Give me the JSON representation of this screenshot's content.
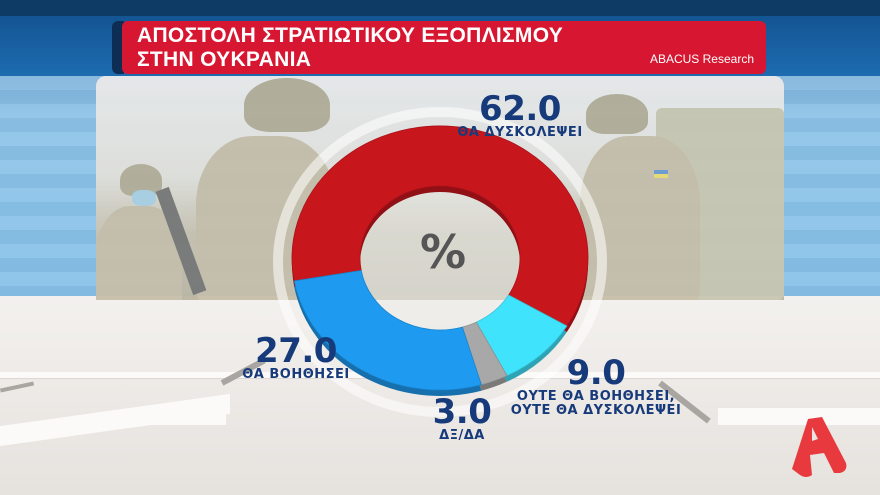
{
  "header": {
    "title_line1": "ΑΠΟΣΤΟΛΗ ΣΤΡΑΤΙΩΤΙΚΟΥ ΕΞΟΠΛΙΣΜΟΥ",
    "title_line2": "ΣΤΗΝ ΟΥΚΡΑΝΙΑ",
    "source": "ABACUS Research"
  },
  "center_symbol": "%",
  "labels": {
    "hinder": {
      "value": "62.0",
      "caption": "ΘΑ ΔΥΣΚΟΛΕΨΕΙ"
    },
    "help": {
      "value": "27.0",
      "caption": "ΘΑ ΒΟΗΘΗΣΕΙ"
    },
    "neither": {
      "value": "9.0",
      "caption_line1": "ΟΥΤΕ ΘΑ ΒΟΗΘΗΣΕΙ,",
      "caption_line2": "ΟΥΤΕ ΘΑ ΔΥΣΚΟΛΕΨΕΙ"
    },
    "dk": {
      "value": "3.0",
      "caption": "ΔΞ/ΔΑ"
    }
  },
  "colors": {
    "title_red": "#d71731",
    "hinder_red": "#c8161d",
    "help_blue": "#1e9bf0",
    "neither_cyan": "#3fe3fb",
    "dk_gray": "#a8a8a8",
    "label_navy": "#173a7a",
    "logo_red": "#e83a3e"
  },
  "chart_data": {
    "type": "pie",
    "donut": true,
    "title": "ΑΠΟΣΤΟΛΗ ΣΤΡΑΤΙΩΤΙΚΟΥ ΕΞΟΠΛΙΣΜΟΥ ΣΤΗΝ ΟΥΚΡΑΝΙΑ",
    "source": "ABACUS Research",
    "unit": "%",
    "categories": [
      "ΘΑ ΔΥΣΚΟΛΕΨΕΙ",
      "ΟΥΤΕ ΘΑ ΒΟΗΘΗΣΕΙ, ΟΥΤΕ ΘΑ ΔΥΣΚΟΛΕΨΕΙ",
      "ΔΞ/ΔΑ",
      "ΘΑ ΒΟΗΘΗΣΕΙ"
    ],
    "values": [
      62.0,
      9.0,
      3.0,
      27.0
    ],
    "colors": [
      "#c8161d",
      "#3fe3fb",
      "#a8a8a8",
      "#1e9bf0"
    ],
    "start_angle_deg": -100,
    "direction": "clockwise"
  }
}
